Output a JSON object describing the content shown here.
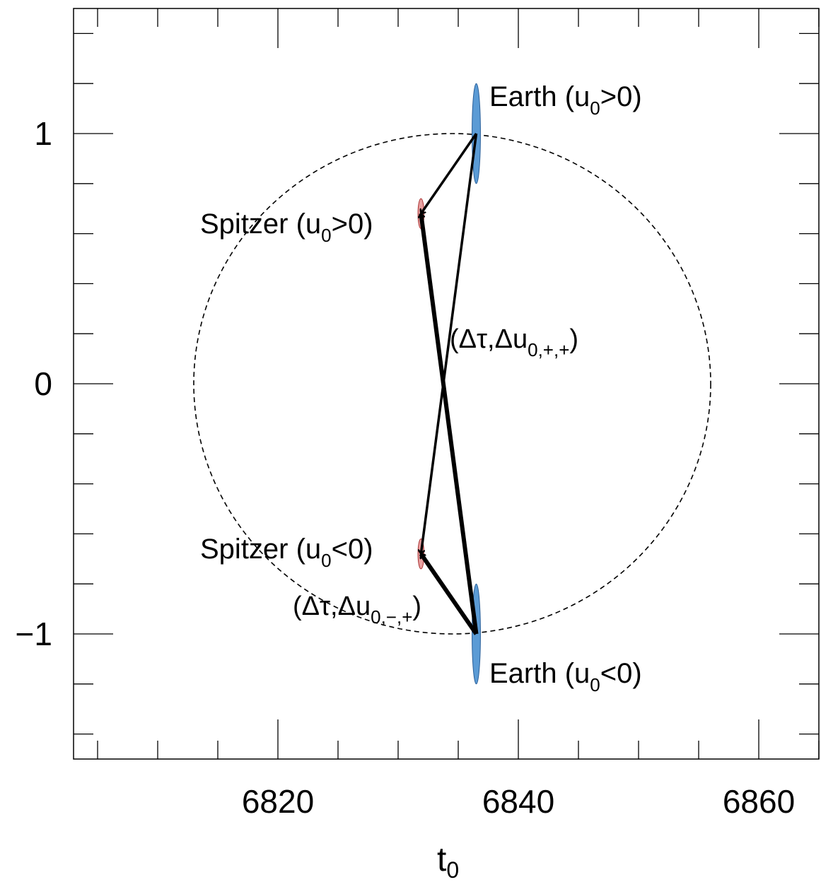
{
  "chart_data": {
    "type": "scatter",
    "xlabel": "t",
    "xlabel_sub": "0",
    "ylabel": "",
    "xlim": [
      6803,
      6865
    ],
    "ylim": [
      -1.5,
      1.5
    ],
    "x_ticks": [
      6820,
      6840,
      6860
    ],
    "x_tick_labels": [
      "6820",
      "6840",
      "6860"
    ],
    "y_ticks": [
      -1,
      0,
      1
    ],
    "y_tick_labels": [
      "−1",
      "0",
      "1"
    ],
    "grid": false,
    "colors": {
      "earth": "#5b9bd5",
      "spitzer": "#e8a0a0",
      "axes": "#000000"
    },
    "circle": {
      "center_x": 6834.5,
      "center_y": 0.0,
      "radius_x": 21.5,
      "radius_y": 1.0,
      "style": "dashed"
    },
    "points": [
      {
        "id": "earth_pos",
        "label": "Earth (u",
        "sub": "0",
        "suffix": ">0)",
        "x": 6836.5,
        "y": 1.0,
        "sx": 0.35,
        "sy": 0.2,
        "color": "earth"
      },
      {
        "id": "spitzer_pos",
        "label": "Spitzer (u",
        "sub": "0",
        "suffix": ">0)",
        "x": 6831.9,
        "y": 0.68,
        "sx": 0.25,
        "sy": 0.06,
        "color": "spitzer"
      },
      {
        "id": "spitzer_neg",
        "label": "Spitzer (u",
        "sub": "0",
        "suffix": "<0)",
        "x": 6831.9,
        "y": -0.68,
        "sx": 0.25,
        "sy": 0.06,
        "color": "spitzer"
      },
      {
        "id": "earth_neg",
        "label": "Earth (u",
        "sub": "0",
        "suffix": "<0)",
        "x": 6836.5,
        "y": -1.0,
        "sx": 0.35,
        "sy": 0.2,
        "color": "earth"
      }
    ],
    "arrows": [
      {
        "from": "earth_pos",
        "to": "spitzer_pos",
        "weight": "thin"
      },
      {
        "from": "earth_pos",
        "to": "spitzer_neg",
        "weight": "thin"
      },
      {
        "from": "earth_neg",
        "to": "spitzer_pos",
        "weight": "thick"
      },
      {
        "from": "earth_neg",
        "to": "spitzer_neg",
        "weight": "thick"
      }
    ],
    "annotations": [
      {
        "id": "delta_pp",
        "text": "(Δτ,Δu",
        "sub": "0,+,+",
        "suffix": ")"
      },
      {
        "id": "delta_mp",
        "text": "(Δτ,Δu",
        "sub": "0,−,+",
        "suffix": ")"
      }
    ]
  }
}
